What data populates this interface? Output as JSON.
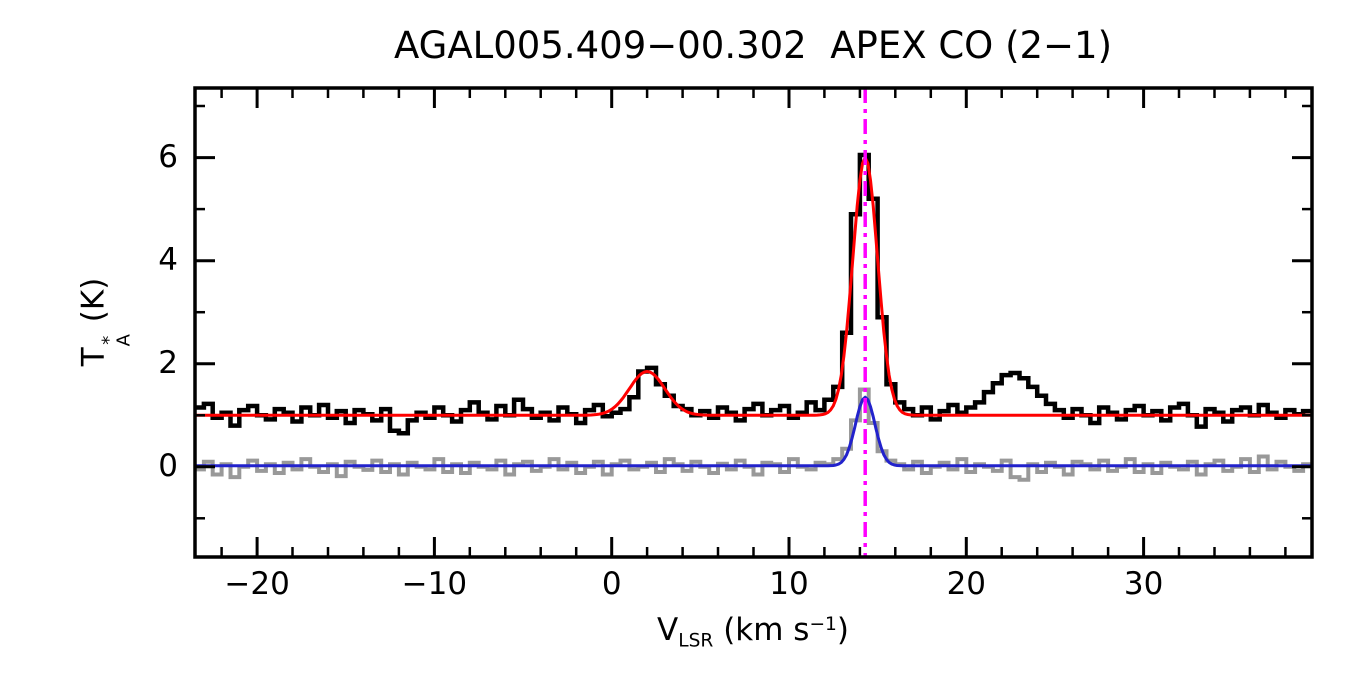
{
  "title": "AGAL005.409−00.302  APEX CO (2−1)",
  "axes": {
    "x": {
      "label_main": "V",
      "label_sub": "LSR",
      "label_unit_pre": " (km s",
      "label_sup": "−1",
      "label_unit_post": ")",
      "ticks": [
        -20,
        -10,
        0,
        10,
        20,
        30
      ],
      "tick_labels": [
        "−20",
        "−10",
        "0",
        "10",
        "20",
        "30"
      ],
      "minor_step": 2,
      "range": [
        -23.5,
        39.5
      ]
    },
    "y": {
      "label_main": "T",
      "label_sup": "*",
      "label_sub": "A",
      "label_unit": " (K)",
      "ticks": [
        0,
        2,
        4,
        6
      ],
      "tick_labels": [
        "0",
        "2",
        "4",
        "6"
      ],
      "minor_step": 1,
      "range": [
        -1.75,
        7.35
      ]
    }
  },
  "colors": {
    "frame": "#000000",
    "observed": "#000000",
    "secondary": "#999999",
    "fit_main": "#ff0000",
    "fit_secondary": "#2222cc",
    "marker": "#ff00ff",
    "background": "#ffffff"
  },
  "chart_data": {
    "type": "line",
    "title": "AGAL005.409−00.302  APEX CO (2−1)",
    "xlabel": "V_LSR (km s^−1)",
    "ylabel": "T*_A (K)",
    "xlim": [
      -23.5,
      39.5
    ],
    "ylim": [
      -1.75,
      7.35
    ],
    "grid": false,
    "legend": "none",
    "x0": -23.25,
    "dx": 0.5,
    "series": [
      {
        "name": "observed-spectrum-offset",
        "style": "histogram",
        "color": "#000000",
        "baseline_level": 1.0,
        "values": [
          1.15,
          1.22,
          0.95,
          1.05,
          0.8,
          1.1,
          1.18,
          1.0,
          0.92,
          1.12,
          1.05,
          0.88,
          1.15,
          1.0,
          1.2,
          0.95,
          1.08,
          0.85,
          1.1,
          1.02,
          0.9,
          1.12,
          0.7,
          0.65,
          0.9,
          1.05,
          0.95,
          1.15,
          1.0,
          0.88,
          1.1,
          1.25,
          1.05,
          0.92,
          1.18,
          1.0,
          1.3,
          1.12,
          0.95,
          1.05,
          0.9,
          1.15,
          1.02,
          0.85,
          1.1,
          1.2,
          0.98,
          1.05,
          1.12,
          1.35,
          1.85,
          1.92,
          1.6,
          1.38,
          1.18,
          1.12,
          1.0,
          1.08,
          0.95,
          1.15,
          1.05,
          0.9,
          1.12,
          1.22,
          1.0,
          1.1,
          1.18,
          0.95,
          1.05,
          1.25,
          1.1,
          1.3,
          1.55,
          2.6,
          4.9,
          6.05,
          5.2,
          2.9,
          1.6,
          1.25,
          1.12,
          1.0,
          1.15,
          0.92,
          1.08,
          1.2,
          1.05,
          1.15,
          1.25,
          1.45,
          1.62,
          1.78,
          1.82,
          1.72,
          1.55,
          1.38,
          1.22,
          1.1,
          0.95,
          1.12,
          1.0,
          0.85,
          1.15,
          1.05,
          0.92,
          1.1,
          1.18,
          1.0,
          1.08,
          0.9,
          1.15,
          1.22,
          1.0,
          0.78,
          1.12,
          1.05,
          0.88,
          1.1,
          1.15,
          1.0,
          1.2,
          1.05,
          0.95,
          1.1,
          1.02,
          1.08
        ]
      },
      {
        "name": "secondary-spectrum",
        "style": "histogram",
        "color": "#999999",
        "baseline_level": 0.0,
        "values": [
          -0.05,
          0.1,
          -0.15,
          0.05,
          -0.2,
          0.0,
          0.12,
          -0.08,
          0.05,
          -0.12,
          0.08,
          -0.05,
          0.15,
          0.0,
          -0.1,
          0.05,
          -0.18,
          0.1,
          0.0,
          -0.06,
          0.12,
          -0.1,
          0.05,
          -0.15,
          0.08,
          0.0,
          -0.05,
          0.15,
          -0.1,
          0.05,
          -0.12,
          0.08,
          0.0,
          -0.05,
          0.12,
          -0.15,
          0.05,
          0.1,
          -0.08,
          0.0,
          0.15,
          -0.05,
          0.08,
          -0.12,
          0.0,
          0.1,
          -0.15,
          0.05,
          0.12,
          -0.05,
          0.0,
          0.08,
          -0.1,
          0.15,
          0.05,
          -0.08,
          0.1,
          0.0,
          -0.12,
          0.06,
          -0.05,
          0.12,
          0.0,
          -0.15,
          0.08,
          0.05,
          -0.1,
          0.15,
          0.0,
          -0.05,
          0.08,
          0.05,
          0.15,
          0.35,
          0.9,
          1.5,
          0.85,
          0.3,
          0.12,
          0.05,
          -0.05,
          0.1,
          -0.12,
          0.0,
          0.08,
          -0.05,
          0.15,
          -0.1,
          0.05,
          0.0,
          -0.08,
          0.12,
          -0.2,
          -0.25,
          0.05,
          -0.1,
          0.08,
          0.0,
          -0.15,
          0.1,
          0.05,
          -0.05,
          0.12,
          -0.08,
          0.0,
          0.15,
          -0.1,
          0.05,
          -0.12,
          0.08,
          0.0,
          -0.05,
          0.1,
          -0.15,
          0.05,
          0.12,
          -0.08,
          0.0,
          0.15,
          -0.1,
          0.2,
          -0.05,
          0.1,
          0.0,
          -0.08,
          0.05
        ]
      },
      {
        "name": "gaussian-fit-main",
        "style": "line",
        "color": "#ff0000",
        "baseline": 1.0,
        "gaussians": [
          {
            "center": 2.0,
            "amp": 0.85,
            "sigma": 1.0
          },
          {
            "center": 14.3,
            "amp": 5.0,
            "sigma": 0.7
          }
        ]
      },
      {
        "name": "gaussian-fit-secondary",
        "style": "line",
        "color": "#2222cc",
        "baseline": 0.02,
        "gaussians": [
          {
            "center": 14.3,
            "amp": 1.33,
            "sigma": 0.55
          }
        ]
      }
    ],
    "marker": {
      "x": 14.3,
      "color": "#ff00ff",
      "style": "dash-dot",
      "label": "systemic-velocity"
    }
  }
}
